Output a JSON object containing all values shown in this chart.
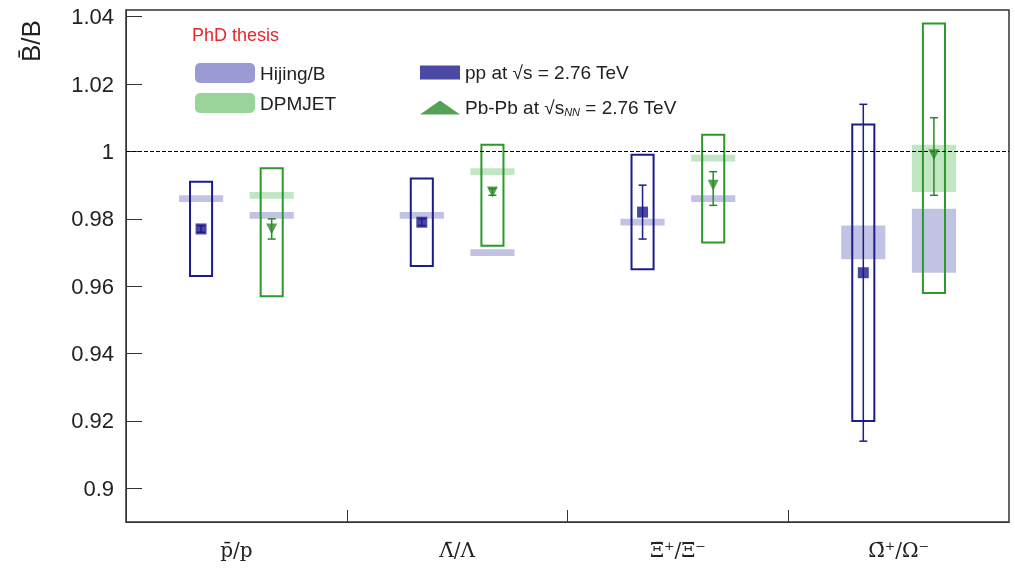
{
  "chart_data": {
    "type": "bar",
    "ylabel": "B̄/B",
    "categories": [
      "p̄/p",
      "Λ̄/Λ",
      "Ξ̄⁺/Ξ⁻",
      "Ω̄⁺/Ω⁻"
    ],
    "ylim": [
      0.89,
      1.042
    ],
    "yticks": [
      0.9,
      0.92,
      0.94,
      0.96,
      0.98,
      1,
      1.02,
      1.04
    ],
    "grid": false,
    "legend": "top left",
    "annotations": [
      "PhD thesis"
    ],
    "ref_lines": [
      {
        "axis": "y",
        "value": 1,
        "line_style": "dashed",
        "color": "#000000"
      }
    ],
    "series": [
      {
        "color": "#1c1c8c",
        "base": [
          0.963,
          0.966,
          0.965,
          0.92
        ],
        "values": [
          0.028,
          0.026,
          0.034,
          0.088
        ]
      },
      {
        "name": "Hijing/B",
        "color": "#9a9ad4",
        "base": [
          0.985,
          0.98,
          0.978,
          0.968
        ],
        "values": [
          0.002,
          0.002,
          0.002,
          0.01
        ]
      },
      {
        "type": "scatter",
        "name": "pp at √s = 2.76 TeV",
        "color": "#1c1c8c",
        "marker": "square",
        "values": [
          0.977,
          0.979,
          0.982,
          0.964
        ],
        "errors": [
          0.001,
          0.001,
          [
            0.974,
            0.99
          ],
          [
            0.914,
            1.014
          ]
        ]
      },
      {
        "color": "#2a9a2a",
        "base": [
          0.957,
          0.972,
          0.973,
          0.958
        ],
        "values": [
          0.038,
          0.03,
          0.032,
          0.08
        ]
      },
      {
        "name": "DPMJET",
        "color": "#9ad49a",
        "base": [
          0.986,
          0.993,
          0.997,
          0.988
        ],
        "values": [
          0.002,
          0.002,
          0.002,
          0.014
        ]
      },
      {
        "color": "#9a9ad4",
        "base": [
          0.98,
          0.969,
          0.985,
          0.964
        ],
        "values": [
          0.002,
          0.002,
          0.002,
          0.019
        ]
      },
      {
        "type": "scatter",
        "name": "Pb-Pb at √s$_{NN}$ = 2.76 TeV",
        "color": "#2a8a2a",
        "marker": "triangle",
        "values": [
          0.977,
          0.988,
          0.99,
          0.999
        ],
        "errors": [
          [
            0.974,
            0.98
          ],
          0.001,
          [
            0.984,
            0.994
          ],
          [
            0.987,
            1.01
          ]
        ]
      }
    ]
  }
}
